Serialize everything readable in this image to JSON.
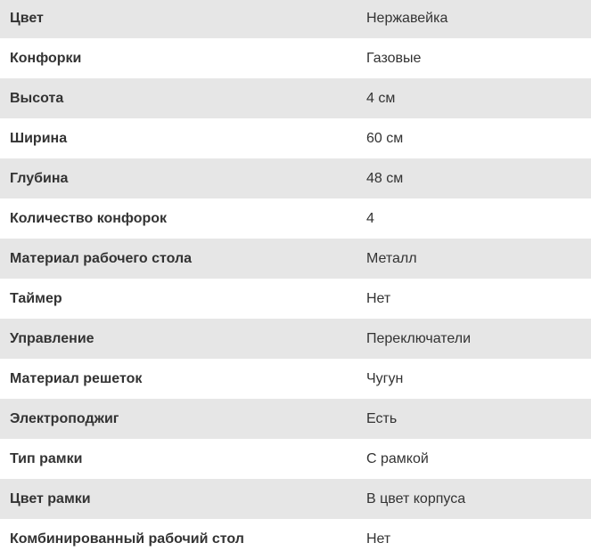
{
  "specs": [
    {
      "label": "Цвет",
      "value": "Нержавейка"
    },
    {
      "label": "Конфорки",
      "value": "Газовые"
    },
    {
      "label": "Высота",
      "value": "4 см"
    },
    {
      "label": "Ширина",
      "value": "60 см"
    },
    {
      "label": "Глубина",
      "value": "48 см"
    },
    {
      "label": "Количество конфорок",
      "value": "4"
    },
    {
      "label": "Материал рабочего стола",
      "value": "Металл"
    },
    {
      "label": "Таймер",
      "value": "Нет"
    },
    {
      "label": "Управление",
      "value": "Переключатели"
    },
    {
      "label": "Материал решеток",
      "value": "Чугун"
    },
    {
      "label": "Электроподжиг",
      "value": "Есть"
    },
    {
      "label": "Тип рамки",
      "value": "С рамкой"
    },
    {
      "label": "Цвет рамки",
      "value": "В цвет корпуса"
    },
    {
      "label": "Комбинированный рабочий стол",
      "value": "Нет"
    }
  ]
}
